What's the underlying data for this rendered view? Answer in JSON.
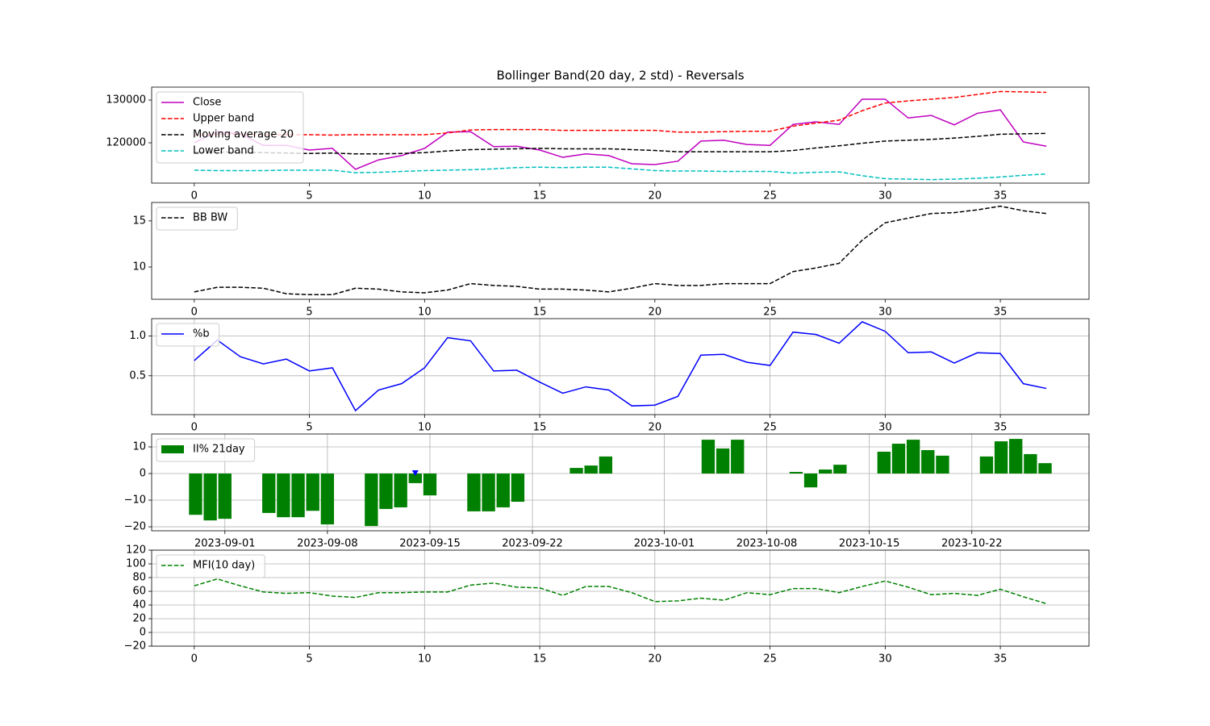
{
  "chart_data": [
    {
      "type": "line",
      "title": "Bollinger Band(20 day, 2 std) - Reversals",
      "x": [
        0,
        1,
        2,
        3,
        4,
        5,
        6,
        7,
        8,
        9,
        10,
        11,
        12,
        13,
        14,
        15,
        16,
        17,
        18,
        19,
        20,
        21,
        22,
        23,
        24,
        25,
        26,
        27,
        28,
        29,
        30,
        31,
        32,
        33,
        34,
        35,
        36,
        37
      ],
      "xlim": [
        -1.85,
        38.85
      ],
      "xticks": [
        0,
        5,
        10,
        15,
        20,
        25,
        30,
        35
      ],
      "ylim": [
        110570,
        133020
      ],
      "yticks": [
        120000,
        130000
      ],
      "grid": false,
      "legend": "upper left",
      "series": [
        {
          "name": "Close",
          "color": "#bf00bf",
          "linestyle": "-",
          "values": [
            120000,
            122600,
            122100,
            119400,
            119400,
            118300,
            118700,
            113800,
            116000,
            117000,
            118700,
            122500,
            122600,
            119100,
            119200,
            118300,
            116600,
            117400,
            117000,
            115100,
            114900,
            115700,
            120400,
            120600,
            119600,
            119400,
            124300,
            124900,
            124300,
            130200,
            130200,
            125800,
            126400,
            124200,
            126900,
            127700,
            120200,
            119200
          ]
        },
        {
          "name": "Upper band",
          "color": "#ff0000",
          "linestyle": "--",
          "values": [
            121800,
            122000,
            122000,
            121900,
            121900,
            121900,
            121800,
            121900,
            121900,
            121900,
            121900,
            122300,
            123000,
            123100,
            123100,
            123100,
            122900,
            122900,
            122900,
            122900,
            122900,
            122500,
            122500,
            122600,
            122700,
            122700,
            123900,
            124600,
            125300,
            127500,
            129300,
            129800,
            130200,
            130600,
            131300,
            132000,
            131900,
            131800
          ]
        },
        {
          "name": "Moving average 20",
          "color": "#000000",
          "linestyle": "--",
          "values": [
            117800,
            117800,
            117800,
            117700,
            117600,
            117500,
            117600,
            117400,
            117400,
            117500,
            117700,
            118100,
            118400,
            118500,
            118600,
            118700,
            118600,
            118600,
            118600,
            118400,
            118200,
            117900,
            117900,
            117900,
            117900,
            117900,
            118200,
            118800,
            119300,
            119900,
            120400,
            120600,
            120800,
            121100,
            121500,
            122000,
            122100,
            122200
          ]
        },
        {
          "name": "Lower band",
          "color": "#00bfbf",
          "linestyle": "--",
          "values": [
            113600,
            113500,
            113500,
            113500,
            113600,
            113600,
            113600,
            113000,
            113100,
            113300,
            113500,
            113600,
            113700,
            113900,
            114200,
            114300,
            114200,
            114300,
            114300,
            113900,
            113500,
            113400,
            113400,
            113300,
            113300,
            113300,
            112900,
            113100,
            113200,
            112300,
            111600,
            111500,
            111400,
            111500,
            111700,
            112000,
            112400,
            112700
          ]
        }
      ]
    },
    {
      "type": "line",
      "x": [
        0,
        1,
        2,
        3,
        4,
        5,
        6,
        7,
        8,
        9,
        10,
        11,
        12,
        13,
        14,
        15,
        16,
        17,
        18,
        19,
        20,
        21,
        22,
        23,
        24,
        25,
        26,
        27,
        28,
        29,
        30,
        31,
        32,
        33,
        34,
        35,
        36,
        37
      ],
      "xlim": [
        -1.85,
        38.85
      ],
      "xticks": [
        0,
        5,
        10,
        15,
        20,
        25,
        30,
        35
      ],
      "ylim": [
        6.5,
        17.0
      ],
      "yticks": [
        10,
        15
      ],
      "grid": false,
      "legend": "upper left",
      "series": [
        {
          "name": "BB BW",
          "color": "#000000",
          "linestyle": "--",
          "values": [
            7.3,
            7.8,
            7.8,
            7.7,
            7.1,
            7.0,
            7.0,
            7.7,
            7.6,
            7.3,
            7.2,
            7.5,
            8.2,
            8.0,
            7.9,
            7.6,
            7.6,
            7.5,
            7.3,
            7.7,
            8.2,
            8.0,
            8.0,
            8.2,
            8.2,
            8.2,
            9.5,
            9.9,
            10.4,
            12.9,
            14.8,
            15.3,
            15.8,
            15.9,
            16.2,
            16.6,
            16.1,
            15.8
          ]
        }
      ]
    },
    {
      "type": "line",
      "x": [
        0,
        1,
        2,
        3,
        4,
        5,
        6,
        7,
        8,
        9,
        10,
        11,
        12,
        13,
        14,
        15,
        16,
        17,
        18,
        19,
        20,
        21,
        22,
        23,
        24,
        25,
        26,
        27,
        28,
        29,
        30,
        31,
        32,
        33,
        34,
        35,
        36,
        37
      ],
      "xlim": [
        -1.85,
        38.85
      ],
      "xticks": [
        0,
        5,
        10,
        15,
        20,
        25,
        30,
        35
      ],
      "ylim": [
        0.01,
        1.22
      ],
      "yticks": [
        0.5,
        {
          "value": 1.0,
          "label": "1.0"
        }
      ],
      "grid": true,
      "legend": "upper left",
      "series": [
        {
          "name": "%b",
          "color": "#0000ff",
          "linestyle": "-",
          "values": [
            0.69,
            0.95,
            0.74,
            0.65,
            0.71,
            0.56,
            0.6,
            0.06,
            0.32,
            0.4,
            0.6,
            0.98,
            0.94,
            0.56,
            0.57,
            0.42,
            0.28,
            0.36,
            0.32,
            0.12,
            0.13,
            0.24,
            0.76,
            0.77,
            0.67,
            0.63,
            1.05,
            1.02,
            0.91,
            1.18,
            1.06,
            0.79,
            0.8,
            0.66,
            0.79,
            0.78,
            0.4,
            0.34
          ]
        }
      ]
    },
    {
      "type": "bar",
      "x": [
        "2023-08-30",
        "2023-08-31",
        "2023-09-01",
        "2023-09-04",
        "2023-09-05",
        "2023-09-06",
        "2023-09-07",
        "2023-09-08",
        "2023-09-11",
        "2023-09-12",
        "2023-09-13",
        "2023-09-14",
        "2023-09-15",
        "2023-09-18",
        "2023-09-19",
        "2023-09-20",
        "2023-09-21",
        "2023-09-25",
        "2023-09-26",
        "2023-09-27",
        "2023-10-04",
        "2023-10-05",
        "2023-10-06",
        "2023-10-10",
        "2023-10-11",
        "2023-10-12",
        "2023-10-13",
        "2023-10-16",
        "2023-10-17",
        "2023-10-18",
        "2023-10-19",
        "2023-10-20",
        "2023-10-23",
        "2023-10-24",
        "2023-10-25",
        "2023-10-26",
        "2023-10-27"
      ],
      "xlim": [
        "2023-08-27",
        "2023-10-30"
      ],
      "xticks": [
        "2023-09-01",
        "2023-09-08",
        "2023-09-15",
        "2023-09-22",
        "2023-10-01",
        "2023-10-08",
        "2023-10-15",
        "2023-10-22"
      ],
      "ylim": [
        -21.5,
        14.85
      ],
      "yticks": [
        {
          "value": -20,
          "label": "−20"
        },
        {
          "value": -10,
          "label": "−10"
        },
        0,
        10
      ],
      "grid": true,
      "legend": "upper left",
      "series": [
        {
          "name": "II% 21day",
          "color": "#008000",
          "values": [
            -15.5,
            -17.6,
            -17.0,
            -14.8,
            -16.4,
            -16.4,
            -14.0,
            -19.1,
            -19.7,
            -13.3,
            -12.7,
            -3.6,
            -8.2,
            -14.2,
            -14.2,
            -12.7,
            -10.6,
            2.1,
            3.0,
            6.4,
            12.7,
            9.4,
            12.7,
            0.6,
            -5.2,
            1.5,
            3.3,
            8.2,
            11.2,
            12.7,
            8.8,
            6.7,
            6.4,
            12.1,
            13.0,
            7.3,
            3.9
          ]
        }
      ],
      "markers": {
        "x": [
          "2023-09-14"
        ],
        "values": [
          0
        ],
        "color": "#0000ff"
      }
    },
    {
      "type": "line",
      "x": [
        0,
        1,
        2,
        3,
        4,
        5,
        6,
        7,
        8,
        9,
        10,
        11,
        12,
        13,
        14,
        15,
        16,
        17,
        18,
        19,
        20,
        21,
        22,
        23,
        24,
        25,
        26,
        27,
        28,
        29,
        30,
        31,
        32,
        33,
        34,
        35,
        36,
        37
      ],
      "xlim": [
        -1.85,
        38.85
      ],
      "xticks": [
        0,
        5,
        10,
        15,
        20,
        25,
        30,
        35
      ],
      "ylim": [
        -20,
        120
      ],
      "yticks": [
        {
          "value": -20,
          "label": "−20"
        },
        0,
        20,
        40,
        60,
        80,
        100,
        120
      ],
      "grid": true,
      "legend": "upper left",
      "series": [
        {
          "name": "MFI(10 day)",
          "color": "#008000",
          "linestyle": "--",
          "values": [
            68,
            78,
            68,
            59,
            57,
            58,
            53,
            51,
            58,
            58,
            59,
            59,
            69,
            72,
            66,
            65,
            54,
            67,
            67,
            58,
            45,
            46,
            50,
            47,
            58,
            55,
            64,
            64,
            58,
            67,
            75,
            66,
            55,
            57,
            54,
            63,
            52,
            42
          ]
        }
      ]
    }
  ]
}
